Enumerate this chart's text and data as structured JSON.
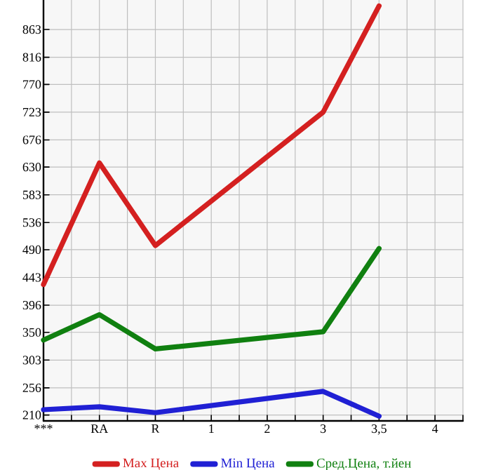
{
  "chart_data": {
    "type": "line",
    "categories": [
      "***",
      "RA",
      "R",
      "1",
      "2",
      "3",
      "3,5",
      "4"
    ],
    "series": [
      {
        "name": "Max Цена",
        "color": "#d42020",
        "values": [
          431,
          637,
          497,
          null,
          null,
          723,
          903,
          null
        ]
      },
      {
        "name": "Min Цена",
        "color": "#2020d4",
        "values": [
          219,
          224,
          214,
          null,
          null,
          250,
          208,
          null
        ]
      },
      {
        "name": "Сред.Цена, т.йен",
        "color": "#108010",
        "values": [
          337,
          380,
          322,
          null,
          null,
          351,
          492,
          null
        ]
      }
    ],
    "ylim": [
      200,
      913
    ],
    "yticks": [
      210,
      256,
      303,
      350,
      396,
      443,
      490,
      536,
      583,
      630,
      676,
      723,
      770,
      816,
      863
    ],
    "grid": true,
    "legend": "bottom",
    "marker": "none",
    "line_style": "solid"
  }
}
